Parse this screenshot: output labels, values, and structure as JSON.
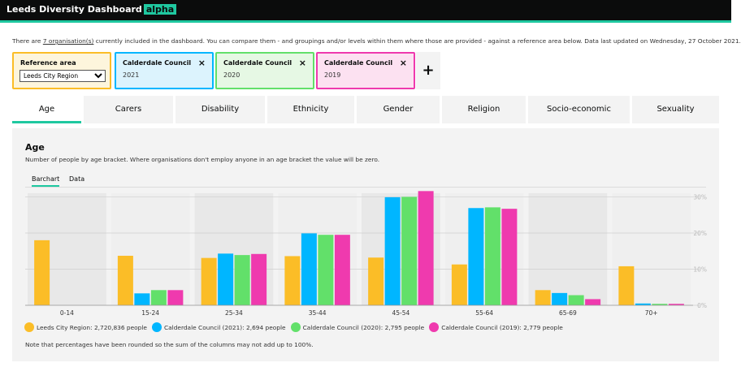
{
  "header": {
    "title": "Leeds Diversity Dashboard",
    "badge": "alpha"
  },
  "intro": {
    "before": "There are ",
    "link": "7 organisation(s)",
    "after": " currently included in the dashboard. You can compare them - and groupings and/or levels within them where those are provided - against a reference area below. Data last updated on Wednesday, 27 October 2021."
  },
  "reference": {
    "label": "Reference area",
    "selected": "Leeds City Region"
  },
  "comparisons": [
    {
      "title": "Calderdale Council",
      "year": "2021",
      "close": "×"
    },
    {
      "title": "Calderdale Council",
      "year": "2020",
      "close": "×"
    },
    {
      "title": "Calderdale Council",
      "year": "2019",
      "close": "×"
    }
  ],
  "add_label": "+",
  "tabs": [
    "Age",
    "Carers",
    "Disability",
    "Ethnicity",
    "Gender",
    "Religion",
    "Socio-economic",
    "Sexuality"
  ],
  "panel": {
    "title": "Age",
    "subtitle": "Number of people by age bracket. Where organisations don't employ anyone in an age bracket the value will be zero.",
    "subtabs": [
      "Barchart",
      "Data"
    ],
    "note": "Note that percentages have been rounded so the sum of the columns may not add up to 100%."
  },
  "colors": {
    "reference": "#fbbd27",
    "cc2021": "#00b6ff",
    "cc2020": "#62e06a",
    "cc2019": "#ef3aae",
    "accent": "#1fc8a0"
  },
  "chart_data": {
    "type": "bar",
    "categories": [
      "0-14",
      "15-24",
      "25-34",
      "35-44",
      "45-54",
      "55-64",
      "65-69",
      "70+"
    ],
    "y_ticks": [
      "0%",
      "10%",
      "20%",
      "30%"
    ],
    "ylim": [
      0,
      31
    ],
    "series": [
      {
        "name": "Leeds City Region: 2,720,836 people",
        "values": [
          18,
          13.7,
          13.1,
          13.6,
          13.2,
          11.3,
          4.2,
          10.8
        ]
      },
      {
        "name": "Calderdale Council (2021): 2,694 people",
        "values": [
          0,
          3.3,
          14.3,
          19.9,
          29.9,
          26.9,
          3.4,
          0.5
        ]
      },
      {
        "name": "Calderdale Council (2020): 2,795 people",
        "values": [
          0,
          4.2,
          13.9,
          19.5,
          30.0,
          27.1,
          2.8,
          0.4
        ]
      },
      {
        "name": "Calderdale Council (2019): 2,779 people",
        "values": [
          0,
          4.2,
          14.2,
          19.5,
          31.6,
          26.7,
          1.7,
          0.4
        ]
      }
    ]
  }
}
